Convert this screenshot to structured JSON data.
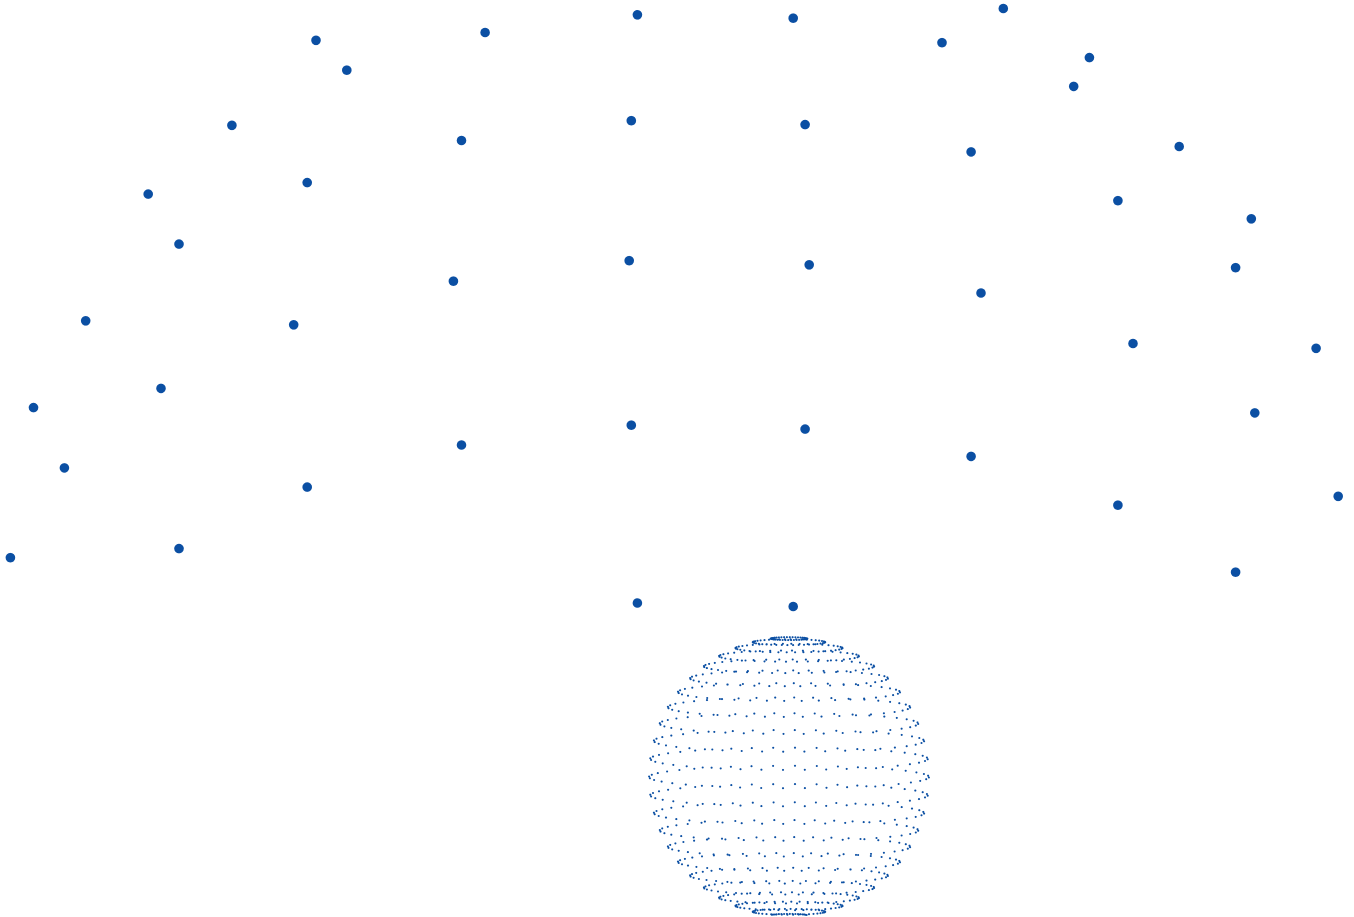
{
  "colors": {
    "background": "#ffffff",
    "dot": "#0b4fa3"
  },
  "visuals": {
    "large_dot_sphere": {
      "latitude_rings": 12,
      "longitude_meridians": 24
    },
    "small_dot_sphere": {
      "latitude_rings": 24,
      "longitude_meridians": 40
    }
  }
}
